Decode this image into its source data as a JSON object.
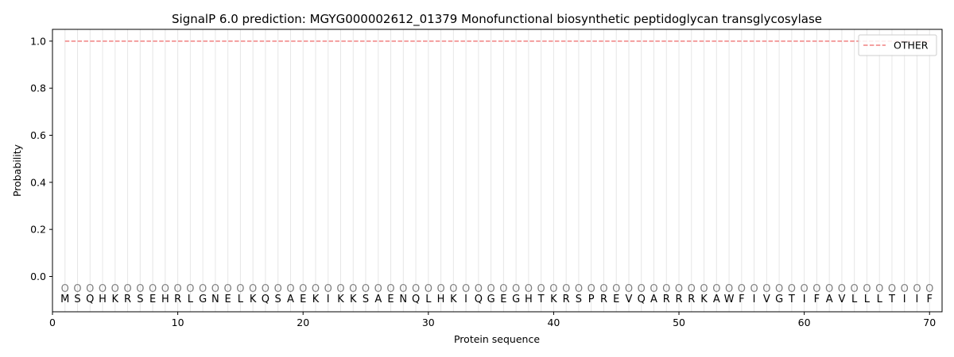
{
  "chart_data": {
    "type": "line",
    "title": "SignalP 6.0 prediction: MGYG000002612_01379 Monofunctional biosynthetic peptidoglycan transglycosylase",
    "xlabel": "Protein sequence",
    "ylabel": "Probability",
    "xlim": [
      0,
      71
    ],
    "ylim": [
      -0.15,
      1.05
    ],
    "x_ticks": [
      "0",
      "10",
      "20",
      "30",
      "40",
      "50",
      "60",
      "70"
    ],
    "y_ticks": [
      "0.0",
      "0.2",
      "0.4",
      "0.6",
      "0.8",
      "1.0"
    ],
    "sequence": [
      "M",
      "S",
      "Q",
      "H",
      "K",
      "R",
      "S",
      "E",
      "H",
      "R",
      "L",
      "G",
      "N",
      "E",
      "L",
      "K",
      "Q",
      "S",
      "A",
      "E",
      "K",
      "I",
      "K",
      "K",
      "S",
      "A",
      "E",
      "N",
      "Q",
      "L",
      "H",
      "K",
      "I",
      "Q",
      "G",
      "E",
      "G",
      "H",
      "T",
      "K",
      "R",
      "S",
      "P",
      "R",
      "E",
      "V",
      "Q",
      "A",
      "R",
      "R",
      "R",
      "K",
      "A",
      "W",
      "F",
      "I",
      "V",
      "G",
      "T",
      "I",
      "F",
      "A",
      "V",
      "L",
      "L",
      "L",
      "T",
      "I",
      "I",
      "F"
    ],
    "region_labels": [
      "O",
      "O",
      "O",
      "O",
      "O",
      "O",
      "O",
      "O",
      "O",
      "O",
      "O",
      "O",
      "O",
      "O",
      "O",
      "O",
      "O",
      "O",
      "O",
      "O",
      "O",
      "O",
      "O",
      "O",
      "O",
      "O",
      "O",
      "O",
      "O",
      "O",
      "O",
      "O",
      "O",
      "O",
      "O",
      "O",
      "O",
      "O",
      "O",
      "O",
      "O",
      "O",
      "O",
      "O",
      "O",
      "O",
      "O",
      "O",
      "O",
      "O",
      "O",
      "O",
      "O",
      "O",
      "O",
      "O",
      "O",
      "O",
      "O",
      "O",
      "O",
      "O",
      "O",
      "O",
      "O",
      "O",
      "O",
      "O",
      "O",
      "O"
    ],
    "series": [
      {
        "name": "OTHER",
        "color": "#f08080",
        "style": "dashed",
        "x_start": 1,
        "x_end": 70,
        "value": 1.0
      }
    ],
    "grid": "vertical per residue",
    "legend_position": "top-right"
  }
}
